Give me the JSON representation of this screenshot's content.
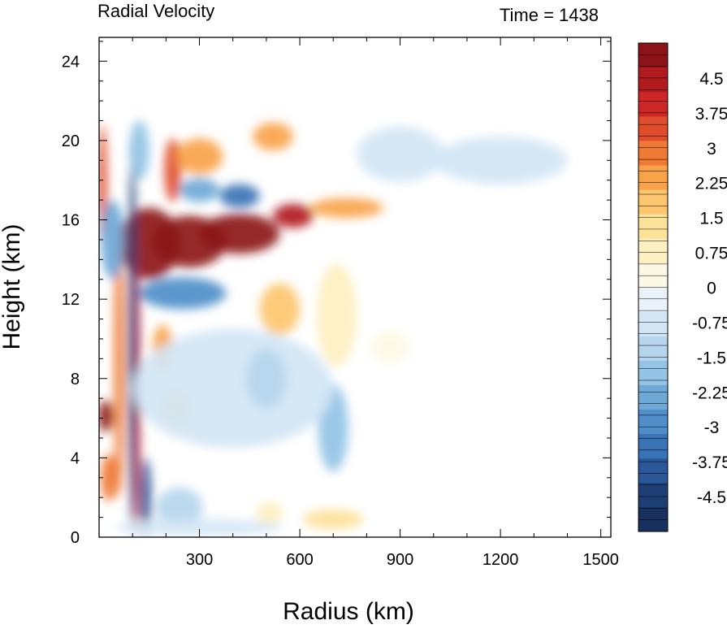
{
  "chart_data": {
    "type": "heatmap",
    "title": "Radial Velocity",
    "subtitle": "Time = 1438",
    "xlabel": "Radius (km)",
    "ylabel": "Height (km)",
    "xlim": [
      0,
      1530
    ],
    "ylim": [
      0,
      25.2
    ],
    "x_ticks": [
      "300",
      "600",
      "900",
      "1200",
      "1500"
    ],
    "x_tick_values": [
      300,
      600,
      900,
      1200,
      1500
    ],
    "y_ticks": [
      "0",
      "4",
      "8",
      "12",
      "16",
      "20",
      "24"
    ],
    "y_tick_values": [
      0,
      4,
      8,
      12,
      16,
      20,
      24
    ],
    "colorbar": {
      "min": -5.25,
      "max": 5.25,
      "step": 0.25,
      "labels": [
        "4.5",
        "3.75",
        "3",
        "2.25",
        "1.5",
        "0.75",
        "0",
        "-0.75",
        "-1.5",
        "-2.25",
        "-3",
        "-3.75",
        "-4.5"
      ],
      "label_values": [
        4.5,
        3.75,
        3,
        2.25,
        1.5,
        0.75,
        0,
        -0.75,
        -1.5,
        -2.25,
        -3,
        -3.75,
        -4.5
      ],
      "colors_positive": [
        "#fdf8e6",
        "#fef0c0",
        "#fde29a",
        "#fdc56f",
        "#f8a34a",
        "#ee7a35",
        "#e04d2d",
        "#cc2626",
        "#b11a1f",
        "#8c1419"
      ],
      "colors_negative": [
        "#ebf3fa",
        "#d3e6f5",
        "#b6d6ee",
        "#93c3e5",
        "#6ea9d8",
        "#4f8ec9",
        "#3a73b5",
        "#2a5898",
        "#1e3f76",
        "#18305e"
      ]
    },
    "features": [
      {
        "x": 150,
        "y": 14.8,
        "rx": 90,
        "ry": 1.8,
        "value": 5.2
      },
      {
        "x": 270,
        "y": 14.9,
        "rx": 110,
        "ry": 1.3,
        "value": 5.2
      },
      {
        "x": 420,
        "y": 15.3,
        "rx": 120,
        "ry": 1.0,
        "value": 4.8
      },
      {
        "x": 580,
        "y": 16.2,
        "rx": 60,
        "ry": 0.6,
        "value": 4.5
      },
      {
        "x": 740,
        "y": 16.6,
        "rx": 110,
        "ry": 0.5,
        "value": 2.3
      },
      {
        "x": 20,
        "y": 6.1,
        "rx": 22,
        "ry": 0.8,
        "value": 4.8
      },
      {
        "x": 60,
        "y": 9.0,
        "rx": 15,
        "ry": 7.0,
        "value": 2.8
      },
      {
        "x": 115,
        "y": 7.0,
        "rx": 8,
        "ry": 7.0,
        "value": 4.0
      },
      {
        "x": 10,
        "y": 17.8,
        "rx": 14,
        "ry": 3.0,
        "value": 3.5
      },
      {
        "x": 220,
        "y": 18.5,
        "rx": 25,
        "ry": 1.6,
        "value": 3.6
      },
      {
        "x": 300,
        "y": 19.2,
        "rx": 70,
        "ry": 0.9,
        "value": 2.3
      },
      {
        "x": 520,
        "y": 20.2,
        "rx": 60,
        "ry": 0.7,
        "value": 2.2
      },
      {
        "x": 190,
        "y": 9.5,
        "rx": 30,
        "ry": 1.2,
        "value": 2.2
      },
      {
        "x": 230,
        "y": 6.5,
        "rx": 40,
        "ry": 0.9,
        "value": 1.8
      },
      {
        "x": 540,
        "y": 11.5,
        "rx": 60,
        "ry": 1.3,
        "value": 1.8
      },
      {
        "x": 710,
        "y": 11.2,
        "rx": 60,
        "ry": 2.6,
        "value": 0.9
      },
      {
        "x": 870,
        "y": 9.6,
        "rx": 60,
        "ry": 0.8,
        "value": 0.5
      },
      {
        "x": 700,
        "y": 0.9,
        "rx": 90,
        "ry": 0.5,
        "value": 1.5
      },
      {
        "x": 510,
        "y": 1.2,
        "rx": 40,
        "ry": 0.6,
        "value": 1.0
      },
      {
        "x": 30,
        "y": 3.0,
        "rx": 25,
        "ry": 1.2,
        "value": 2.8
      },
      {
        "x": 100,
        "y": 10.0,
        "rx": 12,
        "ry": 10.0,
        "value": -4.5
      },
      {
        "x": 140,
        "y": 2.0,
        "rx": 16,
        "ry": 2.0,
        "value": -4.0
      },
      {
        "x": 40,
        "y": 15.0,
        "rx": 35,
        "ry": 2.0,
        "value": -2.5
      },
      {
        "x": 250,
        "y": 12.3,
        "rx": 130,
        "ry": 0.8,
        "value": -3.0
      },
      {
        "x": 420,
        "y": 17.2,
        "rx": 60,
        "ry": 0.6,
        "value": -3.5
      },
      {
        "x": 300,
        "y": 17.5,
        "rx": 60,
        "ry": 0.6,
        "value": -2.5
      },
      {
        "x": 120,
        "y": 19.5,
        "rx": 30,
        "ry": 1.5,
        "value": -2.0
      },
      {
        "x": 700,
        "y": 5.5,
        "rx": 45,
        "ry": 2.2,
        "value": -2.0
      },
      {
        "x": 400,
        "y": 7.5,
        "rx": 300,
        "ry": 3.0,
        "value": -0.7
      },
      {
        "x": 500,
        "y": 8.0,
        "rx": 60,
        "ry": 1.5,
        "value": -1.2
      },
      {
        "x": 900,
        "y": 19.3,
        "rx": 130,
        "ry": 1.4,
        "value": -0.8
      },
      {
        "x": 1200,
        "y": 19.0,
        "rx": 200,
        "ry": 1.2,
        "value": -0.8
      },
      {
        "x": 240,
        "y": 1.5,
        "rx": 70,
        "ry": 1.0,
        "value": -1.3
      },
      {
        "x": 300,
        "y": 0.5,
        "rx": 250,
        "ry": 0.4,
        "value": -1.0
      }
    ]
  }
}
